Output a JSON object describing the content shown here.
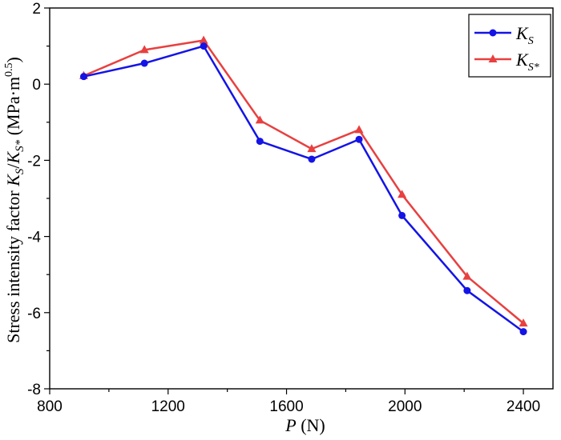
{
  "chart_data": {
    "type": "line",
    "xlabel": {
      "var": "P",
      "rest": " (N)"
    },
    "ylabel": {
      "pre": "Stress intensity factor ",
      "k1": "K",
      "k1sub": "S",
      "slash": "/",
      "k2": "K",
      "k2sub": "S*",
      "unit": " (MPa·m",
      "unitsup": "0.5",
      "close": ")"
    },
    "xlim": [
      800,
      2500
    ],
    "ylim": [
      -8,
      2
    ],
    "xticks": [
      800,
      1200,
      1600,
      2000,
      2400
    ],
    "yticks": [
      -8,
      -6,
      -4,
      -2,
      0,
      2
    ],
    "legend_position": "top-right",
    "grid": false,
    "x": [
      915,
      1120,
      1320,
      1510,
      1685,
      1845,
      1990,
      2210,
      2400
    ],
    "series": [
      {
        "name": {
          "main": "K",
          "sub": "S"
        },
        "marker": "circle",
        "color": "#1414e6",
        "values": [
          0.2,
          0.55,
          1.0,
          -1.5,
          -1.97,
          -1.45,
          -3.45,
          -5.42,
          -6.5
        ]
      },
      {
        "name": {
          "main": "K",
          "sub": "S*"
        },
        "marker": "triangle",
        "color": "#e84040",
        "values": [
          0.22,
          0.9,
          1.15,
          -0.95,
          -1.7,
          -1.2,
          -2.9,
          -5.05,
          -6.28
        ]
      }
    ]
  }
}
